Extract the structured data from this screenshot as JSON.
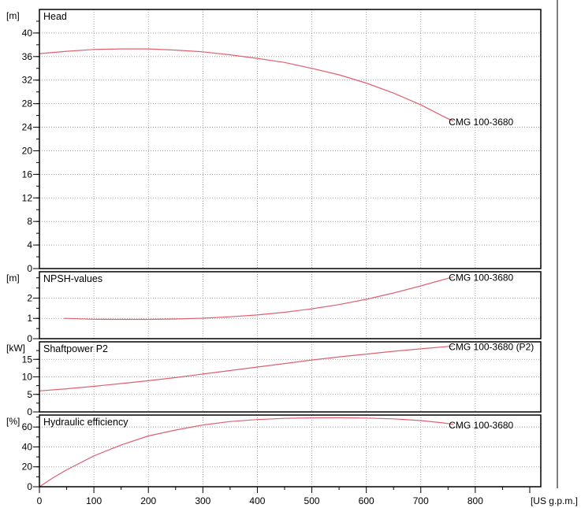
{
  "colors": {
    "curve": "#e0606e",
    "frame": "#000000",
    "grid": "#8c8c8c",
    "background": "#ffffff"
  },
  "x_axis": {
    "unit_label": "[US g.p.m.]",
    "range": [
      0,
      930
    ],
    "ticks": [
      0,
      100,
      200,
      300,
      400,
      500,
      600,
      700,
      800
    ],
    "minor_step": 50
  },
  "chart_data": [
    {
      "type": "line",
      "title": "Head",
      "ylabel": "[m]",
      "ylim": [
        0,
        44
      ],
      "yticks": [
        0,
        4,
        8,
        12,
        16,
        20,
        24,
        28,
        32,
        36,
        40
      ],
      "minor_step": 2,
      "grid": true,
      "series": [
        {
          "name": "CMG 100-3680",
          "x": [
            0,
            50,
            100,
            150,
            200,
            250,
            300,
            350,
            400,
            450,
            500,
            550,
            600,
            650,
            700,
            740,
            760
          ],
          "y": [
            36.5,
            36.9,
            37.2,
            37.3,
            37.3,
            37.1,
            36.8,
            36.3,
            35.7,
            35.0,
            34.0,
            32.9,
            31.5,
            29.8,
            27.8,
            25.9,
            25.0
          ]
        }
      ]
    },
    {
      "type": "line",
      "title": "NPSH-values",
      "ylabel": "[m]",
      "ylim": [
        0,
        3.3
      ],
      "yticks": [
        0,
        1,
        2
      ],
      "minor_step": 0.5,
      "grid": true,
      "series": [
        {
          "name": "CMG 100-3680",
          "x": [
            45,
            100,
            150,
            200,
            250,
            300,
            350,
            400,
            450,
            500,
            550,
            600,
            650,
            700,
            760
          ],
          "y": [
            1.0,
            0.96,
            0.95,
            0.95,
            0.97,
            1.01,
            1.08,
            1.17,
            1.3,
            1.47,
            1.68,
            1.94,
            2.25,
            2.6,
            3.05
          ]
        }
      ]
    },
    {
      "type": "line",
      "title": "Shaftpower P2",
      "ylabel": "[kW]",
      "ylim": [
        0,
        20
      ],
      "yticks": [
        0,
        5,
        10,
        15
      ],
      "minor_step": 2.5,
      "grid": true,
      "series": [
        {
          "name": "CMG 100-3680 (P2)",
          "x": [
            0,
            50,
            100,
            150,
            200,
            250,
            300,
            350,
            400,
            450,
            500,
            550,
            600,
            650,
            700,
            760
          ],
          "y": [
            6.0,
            6.6,
            7.3,
            8.1,
            8.9,
            9.8,
            10.8,
            11.8,
            12.8,
            13.8,
            14.8,
            15.7,
            16.5,
            17.3,
            18.0,
            18.8
          ]
        }
      ]
    },
    {
      "type": "line",
      "title": "Hydraulic efficiency",
      "ylabel": "[%]",
      "ylim": [
        0,
        72
      ],
      "yticks": [
        0,
        20,
        40,
        60
      ],
      "minor_step": 10,
      "grid": true,
      "series": [
        {
          "name": "CMG 100-3680",
          "x": [
            0,
            25,
            50,
            100,
            150,
            200,
            250,
            300,
            350,
            400,
            450,
            500,
            550,
            600,
            650,
            700,
            740,
            760
          ],
          "y": [
            0,
            9,
            17,
            31,
            42,
            51,
            57,
            62,
            65.5,
            67.5,
            68.7,
            69.2,
            69.3,
            69,
            68.2,
            66.5,
            64.2,
            62.7
          ]
        }
      ]
    }
  ]
}
